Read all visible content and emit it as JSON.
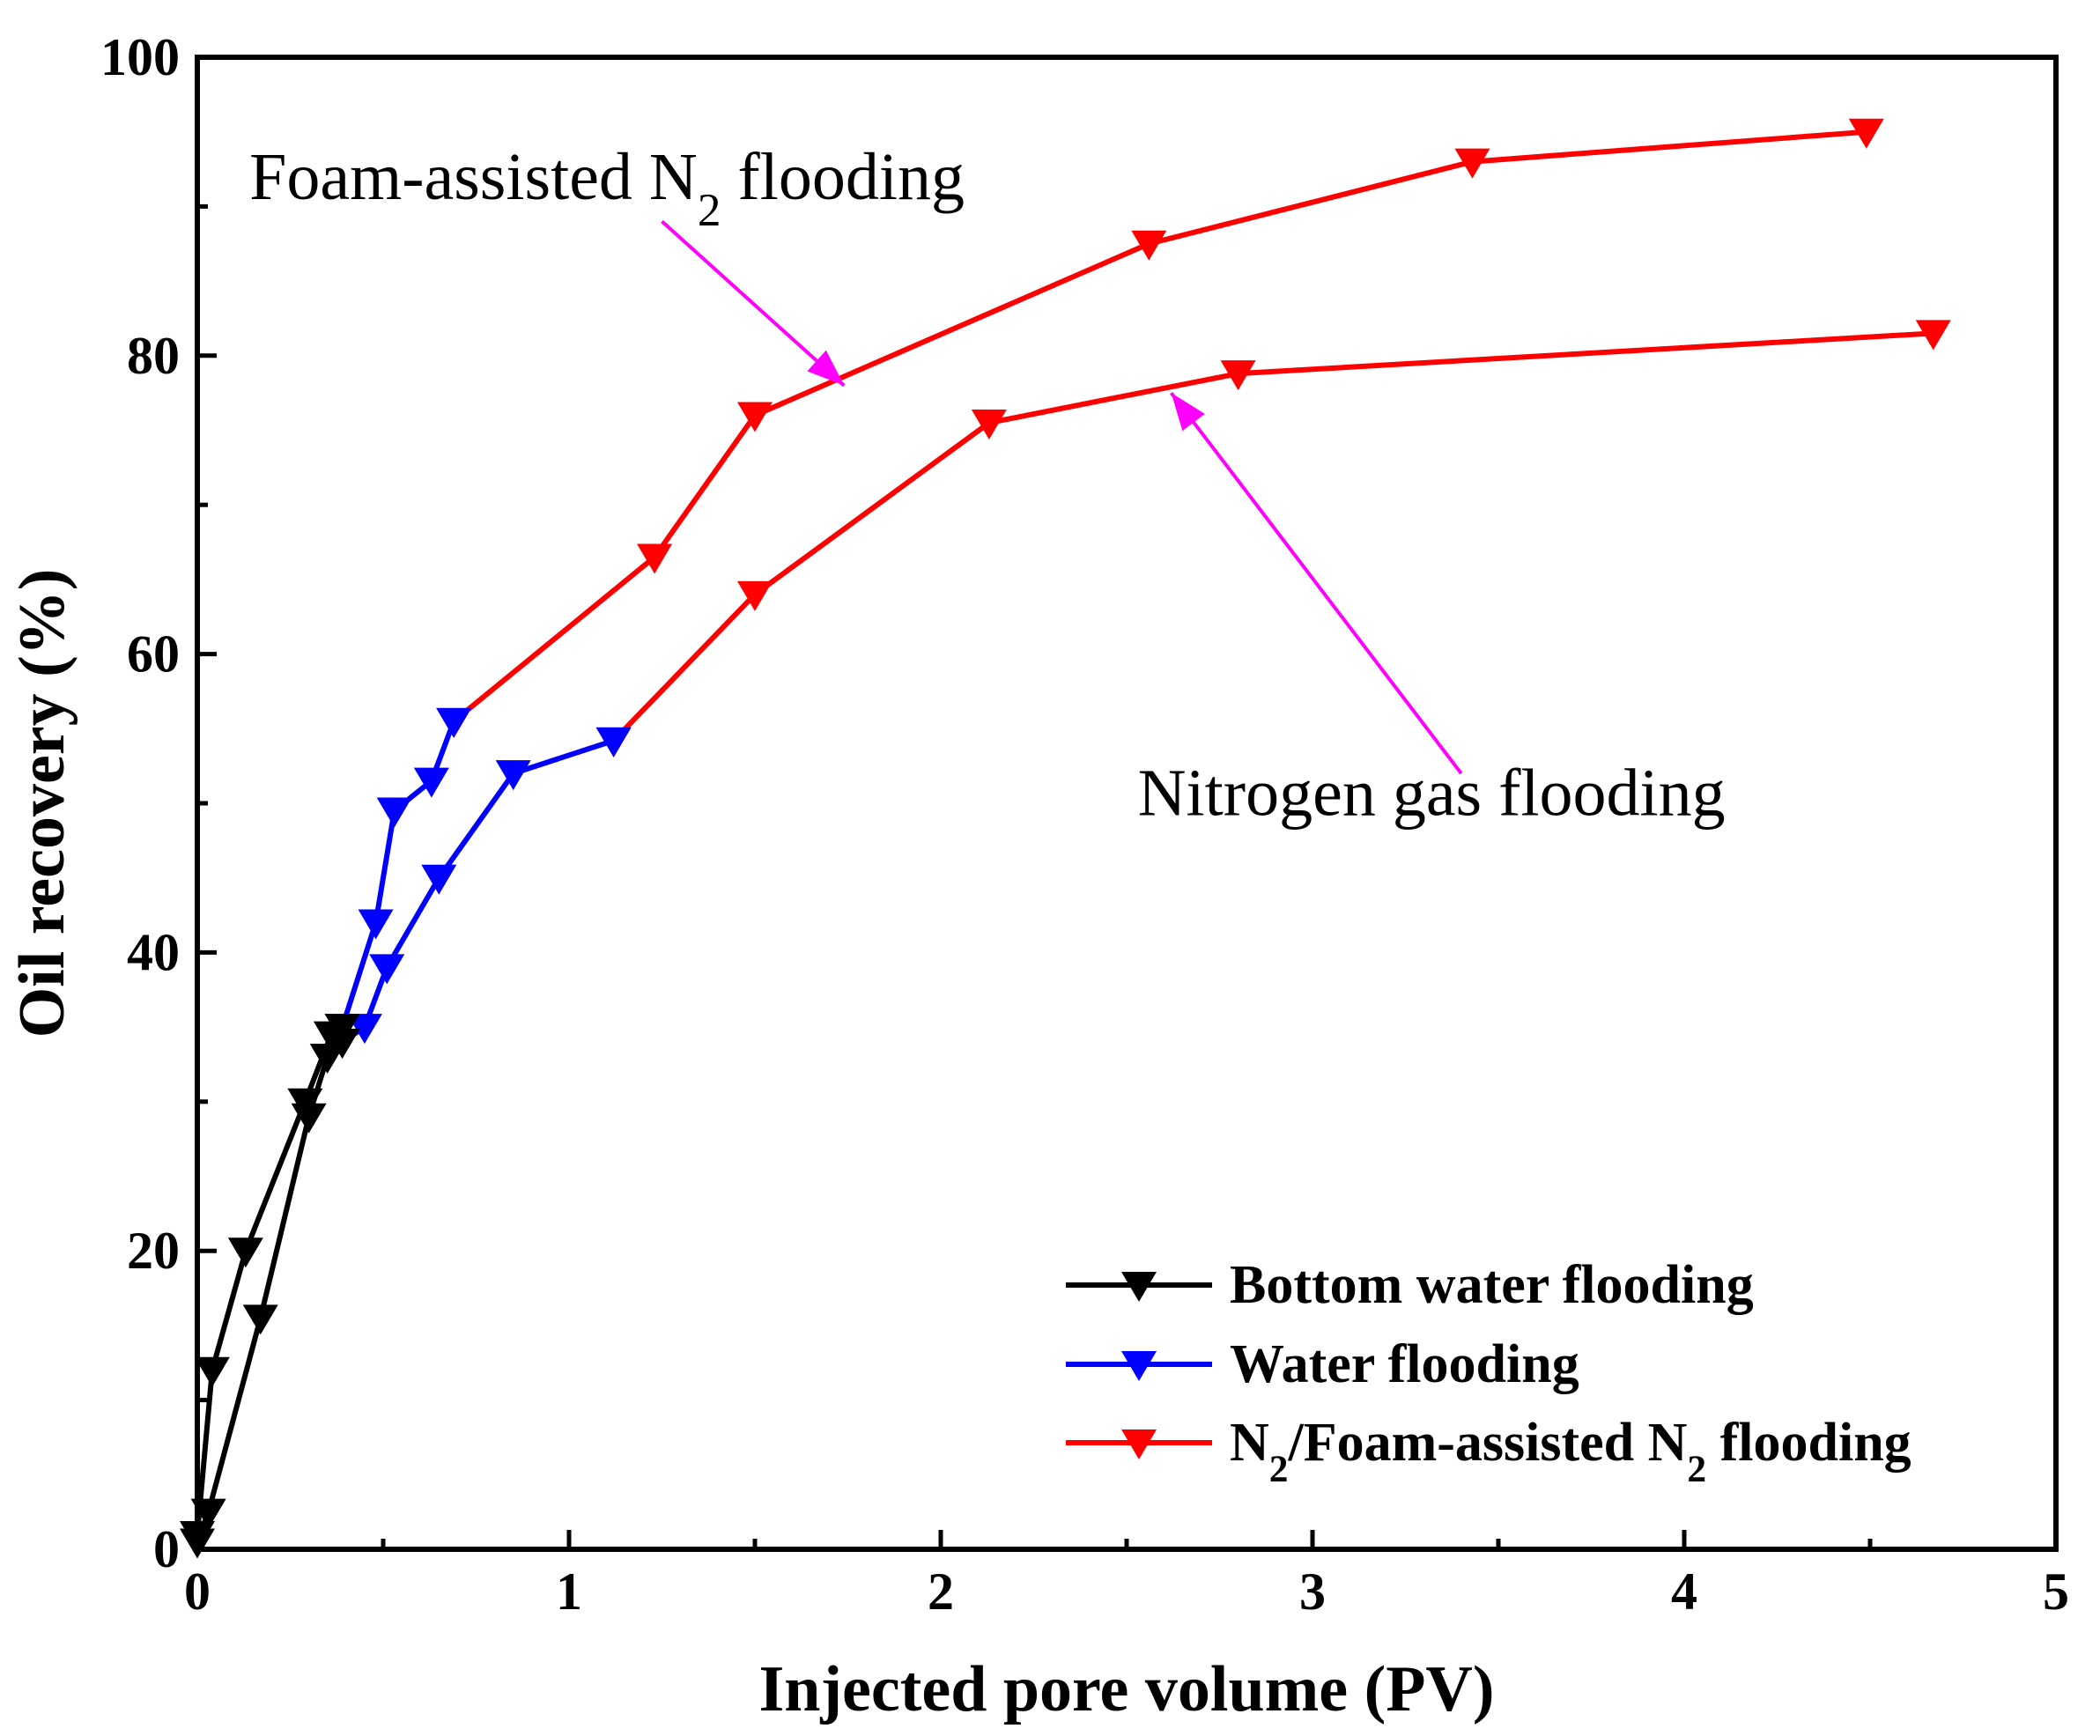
{
  "chart_data": {
    "type": "line",
    "xlabel": "Injected pore volume (PV)",
    "ylabel": "Oil recovery (%)",
    "xlim": [
      0,
      5
    ],
    "ylim": [
      0,
      100
    ],
    "xticks": [
      "0",
      "1",
      "2",
      "3",
      "4",
      "5"
    ],
    "yticks": [
      "0",
      "20",
      "40",
      "60",
      "80",
      "100"
    ],
    "grid": false,
    "legend_position": "bottom-right",
    "colors": {
      "bottom": "#000000",
      "water": "#0000ff",
      "n2": "#ff0000",
      "arrow": "#ff00ff"
    },
    "legend": [
      {
        "key": "bottom",
        "pre": "Bottom water flooding",
        "sub": "",
        "post": "",
        "sub2": "",
        "post2": ""
      },
      {
        "key": "water",
        "pre": "Water flooding",
        "sub": "",
        "post": "",
        "sub2": "",
        "post2": ""
      },
      {
        "key": "n2",
        "pre": "N",
        "sub": "2",
        "post": "/Foam-assisted N",
        "sub2": "2",
        "post2": " flooding"
      }
    ],
    "series": [
      {
        "key": "bottom",
        "line": "Bottom water flooding",
        "marker": "down-triangle",
        "x": [
          0.0,
          0.04,
          0.13,
          0.29,
          0.36,
          0.39
        ],
        "y": [
          1.0,
          12.0,
          20.0,
          30.0,
          34.5,
          35.0
        ]
      },
      {
        "key": "bottom",
        "line": "Bottom water flooding",
        "marker": "down-triangle",
        "x": [
          0.0,
          0.03,
          0.17,
          0.3,
          0.35,
          0.39
        ],
        "y": [
          0.5,
          2.5,
          15.5,
          29.0,
          33.0,
          34.0
        ]
      },
      {
        "key": "water",
        "line": "Water flooding",
        "marker": "down-triangle",
        "x": [
          0.39,
          0.48,
          0.53,
          0.63,
          0.69
        ],
        "y": [
          35.0,
          42.0,
          49.5,
          51.5,
          55.5
        ]
      },
      {
        "key": "water",
        "line": "Water flooding",
        "marker": "down-triangle",
        "x": [
          0.39,
          0.45,
          0.51,
          0.65,
          0.85,
          1.12
        ],
        "y": [
          34.0,
          35.0,
          39.0,
          45.0,
          52.0,
          54.2
        ]
      },
      {
        "key": "n2",
        "line": "Foam-assisted N2 flooding",
        "marker": "down-triangle",
        "x": [
          0.69,
          1.23,
          1.5,
          2.56,
          3.43,
          4.49
        ],
        "y": [
          55.5,
          66.5,
          76.0,
          87.5,
          93.0,
          95.0
        ]
      },
      {
        "key": "n2",
        "line": "Nitrogen gas flooding",
        "marker": "down-triangle",
        "x": [
          1.12,
          1.5,
          2.13,
          2.8,
          4.67
        ],
        "y": [
          54.2,
          64.0,
          75.5,
          78.8,
          81.5
        ]
      }
    ],
    "annotations": [
      {
        "pre": "Foam-assisted N",
        "sub": "2",
        "post": " flooding",
        "text_x": 0.14,
        "text_y": 90.5,
        "from": [
          1.25,
          89.0
        ],
        "to": [
          1.74,
          78.0
        ]
      },
      {
        "pre": "Nitrogen gas flooding",
        "sub": "",
        "post": "",
        "text_x": 2.53,
        "text_y": 49.2,
        "from": [
          3.4,
          52.0
        ],
        "to": [
          2.62,
          77.5
        ]
      }
    ]
  }
}
